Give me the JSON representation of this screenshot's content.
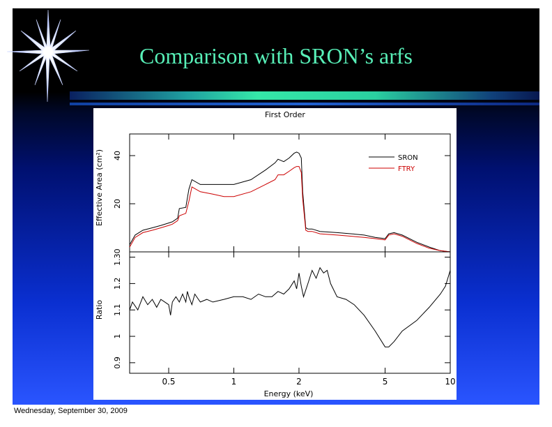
{
  "slide": {
    "title": "Comparison with SRON’s arfs",
    "footer": "Wednesday, September 30, 2009",
    "colors": {
      "title": "#58f0b8",
      "background_top": "#000000",
      "background_bottom": "#2a55ff",
      "accent_bar": "#35e8a8"
    }
  },
  "chart_data": {
    "type": "line",
    "title": "First Order",
    "xlabel": "Energy (keV)",
    "xscale": "log",
    "xlim": [
      0.33,
      10
    ],
    "x_ticks": [
      {
        "v": 0.5,
        "label": "0.5"
      },
      {
        "v": 1,
        "label": "1"
      },
      {
        "v": 2,
        "label": "2"
      },
      {
        "v": 5,
        "label": "5"
      },
      {
        "v": 10,
        "label": "10"
      }
    ],
    "panels": [
      {
        "name": "top",
        "ylabel": "Effective Area (cm²)",
        "ylim": [
          0,
          49
        ],
        "y_ticks": [
          {
            "v": 20,
            "label": "20"
          },
          {
            "v": 40,
            "label": "40"
          }
        ],
        "legend_position": "top-right",
        "series": [
          {
            "name": "SRON",
            "color": "#000000",
            "x": [
              0.33,
              0.35,
              0.38,
              0.42,
              0.46,
              0.5,
              0.52,
              0.55,
              0.56,
              0.6,
              0.62,
              0.64,
              0.7,
              0.8,
              0.9,
              1.0,
              1.2,
              1.4,
              1.55,
              1.6,
              1.7,
              1.8,
              1.9,
              1.95,
              2.0,
              2.05,
              2.08,
              2.15,
              2.2,
              2.3,
              2.5,
              3.0,
              3.5,
              4.0,
              4.5,
              5.0,
              5.2,
              5.5,
              6.0,
              7.0,
              8.0,
              9.0,
              10.0
            ],
            "y": [
              3,
              7,
              9,
              10,
              11,
              12,
              12.5,
              14,
              18,
              18.5,
              26,
              30,
              28,
              28,
              28,
              28,
              30,
              34,
              37,
              38.5,
              37.5,
              39,
              41,
              41.5,
              41,
              39,
              25,
              10,
              9.5,
              9.5,
              8.5,
              8,
              7.5,
              7,
              6,
              5.5,
              7.5,
              8,
              7,
              4,
              2,
              0.5,
              0
            ]
          },
          {
            "name": "FTRY",
            "color": "#cc0000",
            "x": [
              0.33,
              0.35,
              0.38,
              0.42,
              0.46,
              0.5,
              0.52,
              0.55,
              0.56,
              0.6,
              0.62,
              0.64,
              0.7,
              0.8,
              0.9,
              1.0,
              1.2,
              1.4,
              1.55,
              1.6,
              1.7,
              1.8,
              1.9,
              1.95,
              2.0,
              2.05,
              2.08,
              2.15,
              2.2,
              2.3,
              2.5,
              3.0,
              3.5,
              4.0,
              4.5,
              5.0,
              5.2,
              5.5,
              6.0,
              7.0,
              8.0,
              9.0,
              10.0
            ],
            "y": [
              2,
              6,
              8,
              9,
              10,
              11,
              11.5,
              13,
              15,
              16,
              21,
              27,
              25,
              24,
              23,
              23,
              25,
              28,
              30,
              32,
              32,
              33.5,
              35,
              35.5,
              35.5,
              33,
              22,
              9,
              8.5,
              8.5,
              7.5,
              7,
              6.5,
              6,
              5.5,
              5,
              7,
              7.5,
              6.5,
              3.5,
              1.5,
              0.5,
              0
            ]
          }
        ]
      },
      {
        "name": "bottom",
        "ylabel": "Ratio",
        "ylim": [
          0.86,
          1.32
        ],
        "y_ticks": [
          {
            "v": 0.9,
            "label": "0.9"
          },
          {
            "v": 1.0,
            "label": "1"
          },
          {
            "v": 1.1,
            "label": "1.1"
          },
          {
            "v": 1.2,
            "label": "1.2"
          },
          {
            "v": 1.3,
            "label": "1.30"
          }
        ],
        "series": [
          {
            "name": "",
            "color": "#000000",
            "x": [
              0.33,
              0.34,
              0.36,
              0.38,
              0.4,
              0.42,
              0.44,
              0.46,
              0.48,
              0.5,
              0.51,
              0.52,
              0.54,
              0.56,
              0.58,
              0.6,
              0.61,
              0.62,
              0.64,
              0.66,
              0.7,
              0.75,
              0.8,
              0.9,
              1.0,
              1.1,
              1.2,
              1.3,
              1.4,
              1.5,
              1.6,
              1.7,
              1.8,
              1.9,
              1.95,
              2.0,
              2.05,
              2.1,
              2.2,
              2.3,
              2.4,
              2.5,
              2.6,
              2.7,
              2.8,
              3.0,
              3.3,
              3.6,
              4.0,
              4.5,
              5.0,
              5.2,
              5.5,
              6.0,
              7.0,
              8.0,
              9.0,
              9.5,
              10.0
            ],
            "y": [
              1.1,
              1.13,
              1.1,
              1.15,
              1.12,
              1.14,
              1.11,
              1.14,
              1.13,
              1.12,
              1.08,
              1.13,
              1.15,
              1.13,
              1.16,
              1.13,
              1.17,
              1.15,
              1.12,
              1.16,
              1.13,
              1.14,
              1.13,
              1.14,
              1.15,
              1.15,
              1.14,
              1.16,
              1.15,
              1.15,
              1.17,
              1.16,
              1.18,
              1.21,
              1.18,
              1.24,
              1.19,
              1.15,
              1.2,
              1.25,
              1.22,
              1.26,
              1.24,
              1.25,
              1.2,
              1.15,
              1.14,
              1.12,
              1.08,
              1.02,
              0.96,
              0.96,
              0.98,
              1.02,
              1.06,
              1.11,
              1.16,
              1.19,
              1.25
            ]
          }
        ]
      }
    ]
  }
}
